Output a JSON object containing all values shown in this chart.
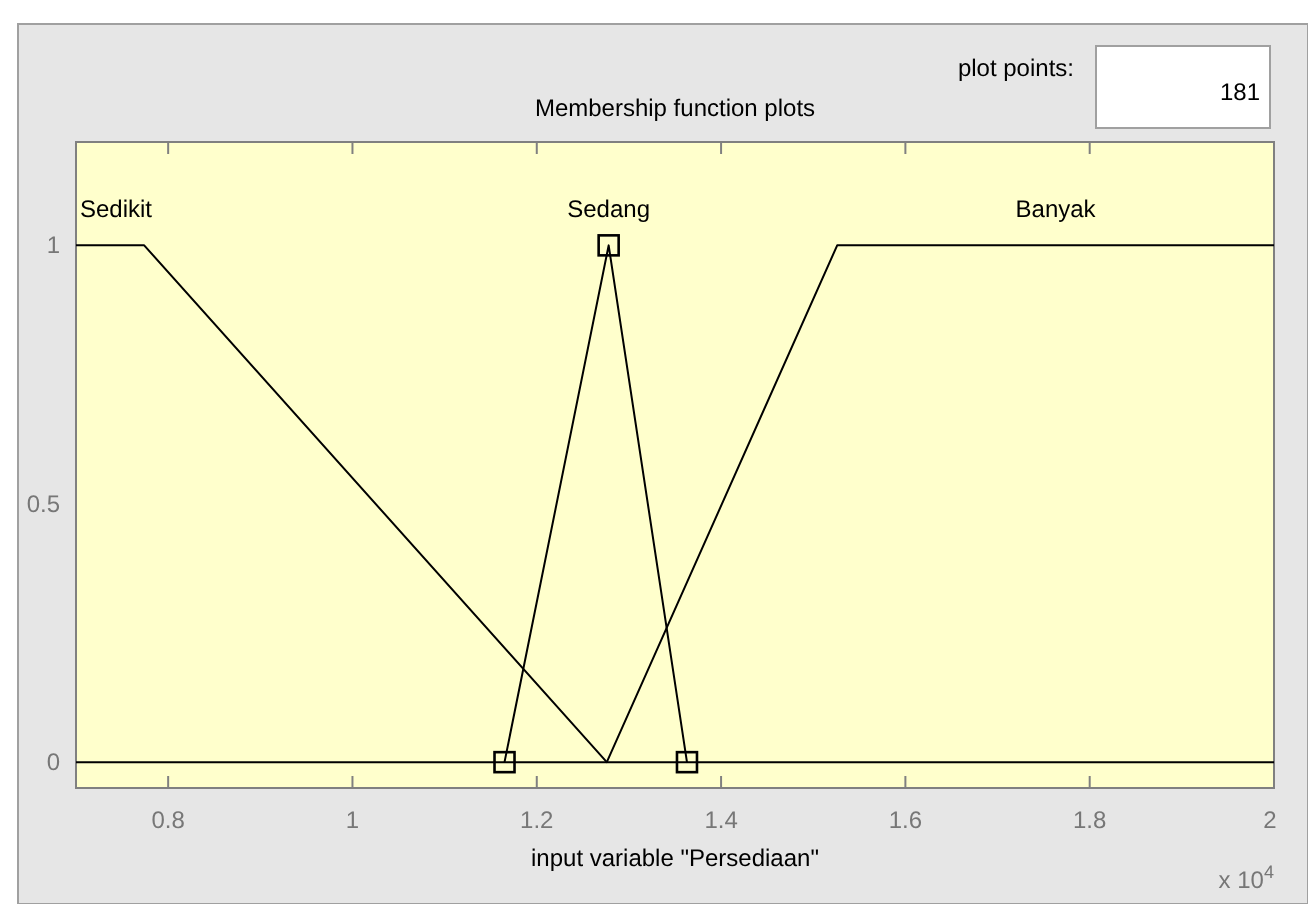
{
  "chart_data": {
    "type": "line",
    "title": "Membership function plots",
    "xlabel": "input variable \"Persediaan\"",
    "annotations": [
      "plot points:",
      "181",
      "x 10$^{4}$"
    ],
    "series": [
      {
        "name": "Sedikit",
        "color": "#000000",
        "x": [
          0.7,
          0.774,
          1.276,
          2
        ],
        "values": [
          1,
          1,
          0,
          0
        ],
        "marker": "none"
      },
      {
        "name": "Sedang",
        "color": "#000000",
        "x": [
          1.165,
          1.278,
          1.363
        ],
        "values": [
          0,
          1,
          0
        ],
        "marker": "square"
      },
      {
        "name": "Banyak",
        "color": "#000000",
        "x": [
          0.7,
          1.276,
          1.526,
          2
        ],
        "values": [
          0,
          0,
          1,
          1
        ],
        "marker": "none"
      }
    ],
    "xlim": [
      0.7,
      2
    ],
    "xticks": [
      0.8,
      1,
      1.2,
      1.4,
      1.6,
      1.8,
      2
    ],
    "ylim": [
      -0.05,
      1.2
    ],
    "yticks": [
      0,
      0.5,
      1
    ],
    "grid": false,
    "line_style": "solid"
  }
}
